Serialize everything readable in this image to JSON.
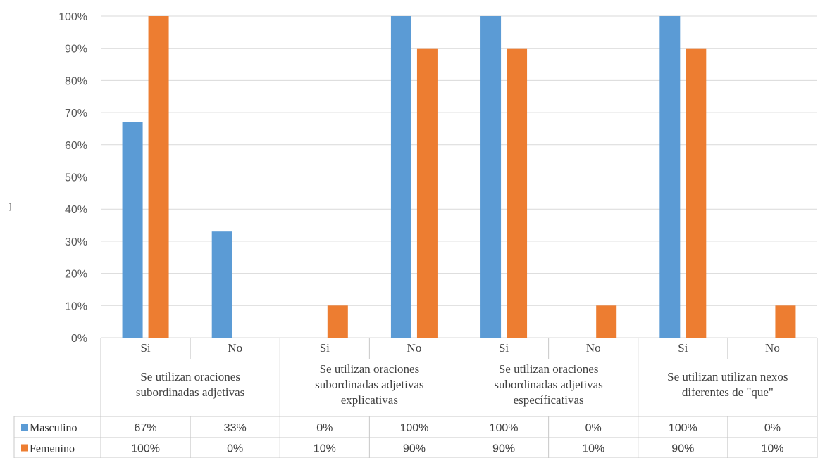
{
  "chart_data": {
    "type": "bar",
    "y_ticks": [
      "0%",
      "10%",
      "20%",
      "30%",
      "40%",
      "50%",
      "60%",
      "70%",
      "80%",
      "90%",
      "100%"
    ],
    "ylim": [
      0,
      100
    ],
    "grid": true,
    "legend": "data-table-left",
    "categories": [
      "Si",
      "No",
      "Si",
      "No",
      "Si",
      "No",
      "Si",
      "No"
    ],
    "groups": [
      {
        "lines": [
          "Se  utilizan oraciones",
          "subordinadas adjetivas"
        ]
      },
      {
        "lines": [
          "Se utilizan oraciones",
          "subordinadas adjetivas",
          "explicativas"
        ]
      },
      {
        "lines": [
          "Se utilizan oraciones",
          "subordinadas adjetivas",
          "específicativas"
        ]
      },
      {
        "lines": [
          "Se utilizan utilizan nexos",
          "diferentes  de \"que\""
        ]
      }
    ],
    "series": [
      {
        "name": "Masculino",
        "color": "#5B9BD5",
        "values": [
          67,
          33,
          0,
          100,
          100,
          0,
          100,
          0
        ],
        "labels": [
          "67%",
          "33%",
          "0%",
          "100%",
          "100%",
          "0%",
          "100%",
          "0%"
        ]
      },
      {
        "name": "Femenino",
        "color": "#ED7D31",
        "values": [
          100,
          0,
          10,
          90,
          90,
          10,
          90,
          10
        ],
        "labels": [
          "100%",
          "0%",
          "10%",
          "90%",
          "90%",
          "10%",
          "90%",
          "10%"
        ]
      }
    ]
  },
  "stray_mark": "]"
}
